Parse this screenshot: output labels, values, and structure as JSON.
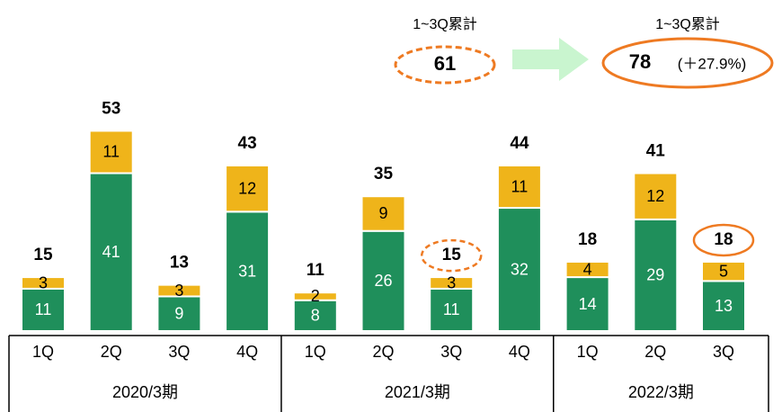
{
  "chart_data": {
    "type": "bar",
    "stacked": true,
    "groups": [
      {
        "label": "2020/3期",
        "categories": [
          "1Q",
          "2Q",
          "3Q",
          "4Q"
        ]
      },
      {
        "label": "2021/3期",
        "categories": [
          "1Q",
          "2Q",
          "3Q",
          "4Q"
        ]
      },
      {
        "label": "2022/3期",
        "categories": [
          "1Q",
          "2Q",
          "3Q"
        ]
      }
    ],
    "series": [
      {
        "color": "#1f8f5b",
        "values": [
          11,
          41,
          9,
          31,
          8,
          26,
          11,
          32,
          14,
          29,
          13
        ]
      },
      {
        "color": "#efb41a",
        "values": [
          3,
          11,
          3,
          12,
          2,
          9,
          3,
          11,
          4,
          12,
          5
        ]
      }
    ],
    "totals": [
      15,
      53,
      13,
      43,
      11,
      35,
      15,
      44,
      18,
      41,
      18
    ],
    "annotations": [
      "1~3Q累計",
      "61",
      "1~3Q累計",
      "78",
      "(＋27.9%)"
    ],
    "highlight_color": "#ee7a22"
  }
}
